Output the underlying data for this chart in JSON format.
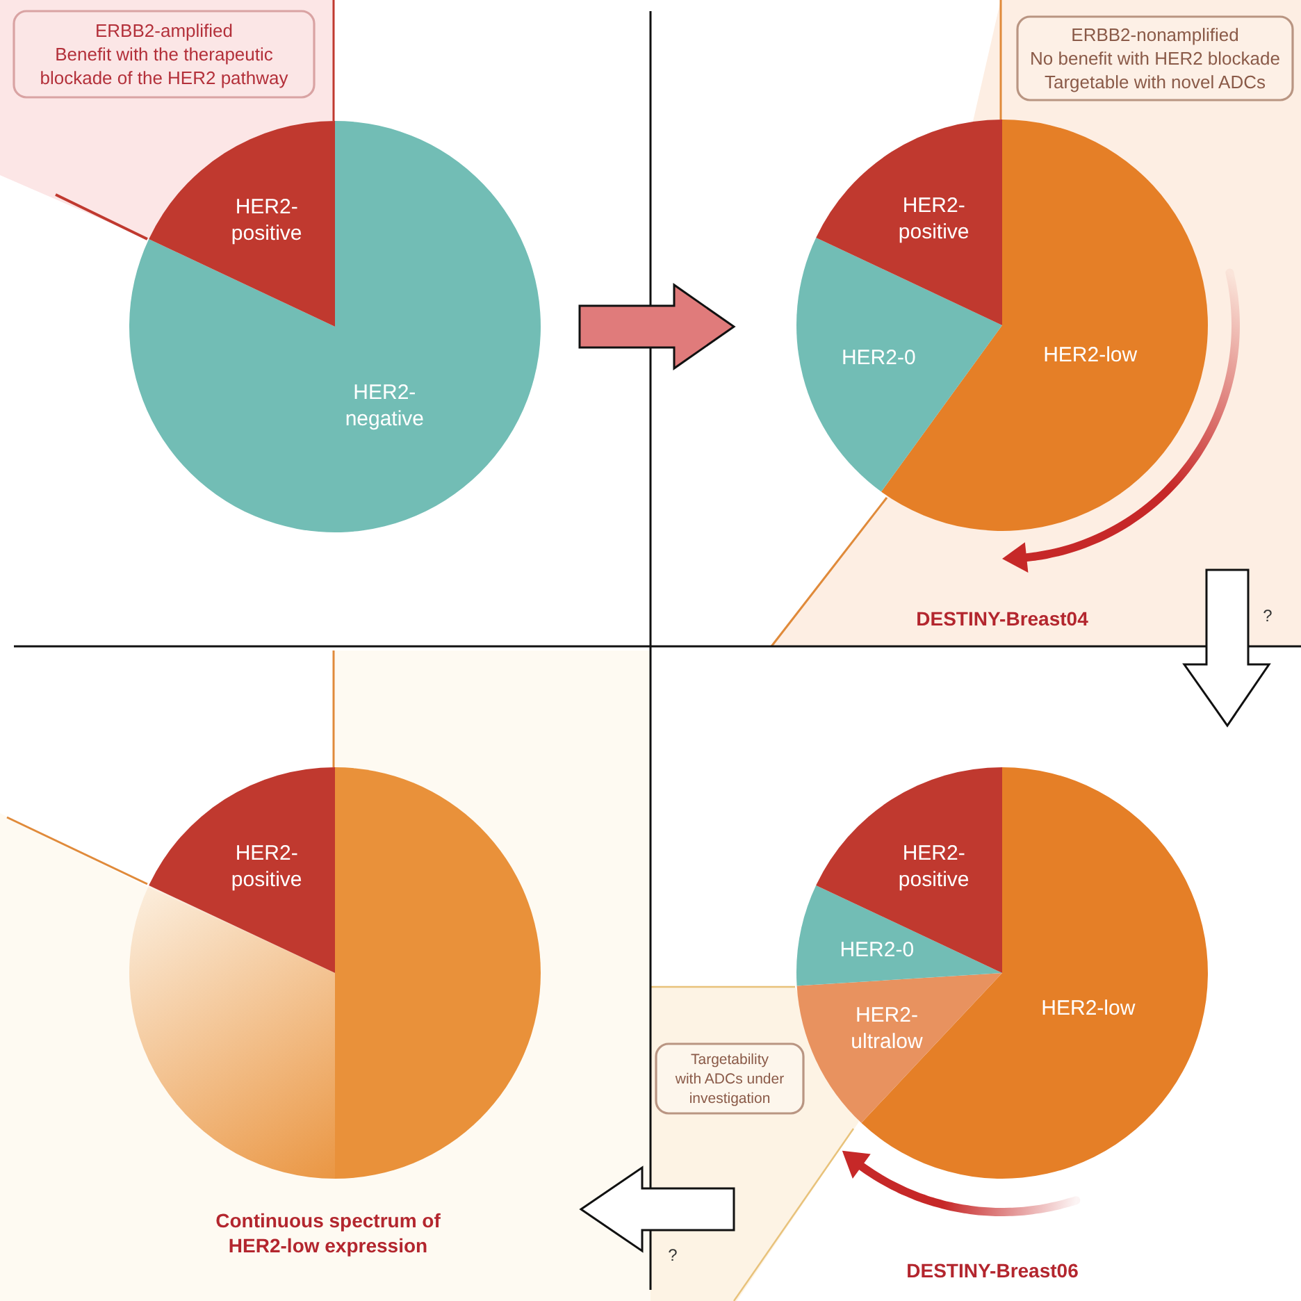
{
  "chart_data": [
    {
      "type": "pie",
      "categories": [
        "HER2-negative",
        "HER2-positive"
      ],
      "values": [
        82,
        18
      ],
      "colors": [
        "#72bdb5",
        "#c0392f"
      ],
      "annotations": [
        "ERBB2-amplified\nBenefit with the therapeutic\nblockade of the HER2 pathway"
      ]
    },
    {
      "type": "pie",
      "categories": [
        "HER2-low",
        "HER2-0",
        "HER2-positive"
      ],
      "values": [
        60,
        22,
        18
      ],
      "colors": [
        "#e57f27",
        "#72bdb5",
        "#c0392f"
      ],
      "annotations": [
        "ERBB2-nonamplified\nNo benefit with HER2 blockade\nTargetable with novel ADCs",
        "DESTINY-Breast04",
        "?"
      ]
    },
    {
      "type": "pie",
      "categories": [
        null,
        null,
        "HER2-positive"
      ],
      "values": [
        50,
        32,
        18
      ],
      "colors": [
        "#e9913a",
        "#e9913a",
        "#c0392f"
      ],
      "annotations": [
        "Continuous spectrum of\nHER2-low expression"
      ]
    },
    {
      "type": "pie",
      "categories": [
        "HER2-low",
        "HER2-ultralow",
        "HER2-0",
        "HER2-positive"
      ],
      "values": [
        62,
        12,
        8,
        18
      ],
      "colors": [
        "#e57f27",
        "#e8925f",
        "#72bdb5",
        "#c0392f"
      ],
      "annotations": [
        "Targetability\nwith ADCs under\ninvestigation",
        "DESTINY-Breast06",
        "?"
      ]
    }
  ]
}
